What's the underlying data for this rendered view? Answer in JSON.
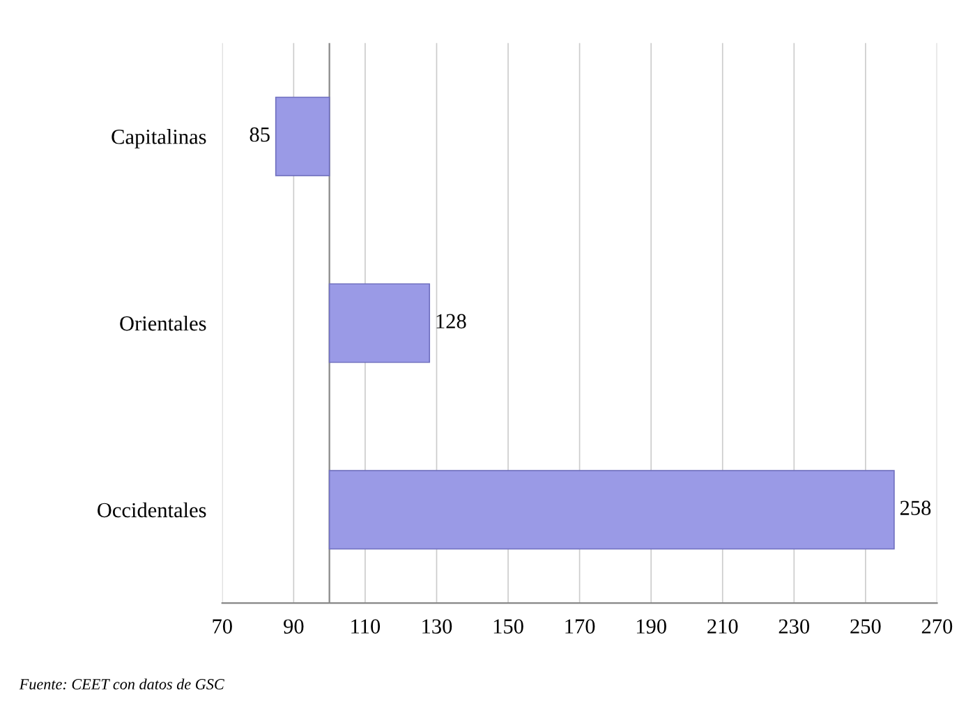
{
  "chart_data": {
    "type": "bar",
    "orientation": "horizontal",
    "categories": [
      "Capitalinas",
      "Orientales",
      "Occidentales"
    ],
    "base": [
      100,
      100,
      100
    ],
    "values": [
      -15,
      28,
      158
    ],
    "value_labels": [
      "85",
      "128",
      "258"
    ],
    "color": "#9a9ae6",
    "xlim": [
      70,
      270
    ],
    "xticks": [
      70,
      90,
      110,
      130,
      150,
      170,
      190,
      210,
      230,
      250,
      270
    ],
    "grid": "x",
    "ref_lines": [
      {
        "axis": "x",
        "value": 100,
        "color": "#888888"
      }
    ],
    "annotations": [
      "Fuente: CEET con datos de GSC"
    ]
  }
}
